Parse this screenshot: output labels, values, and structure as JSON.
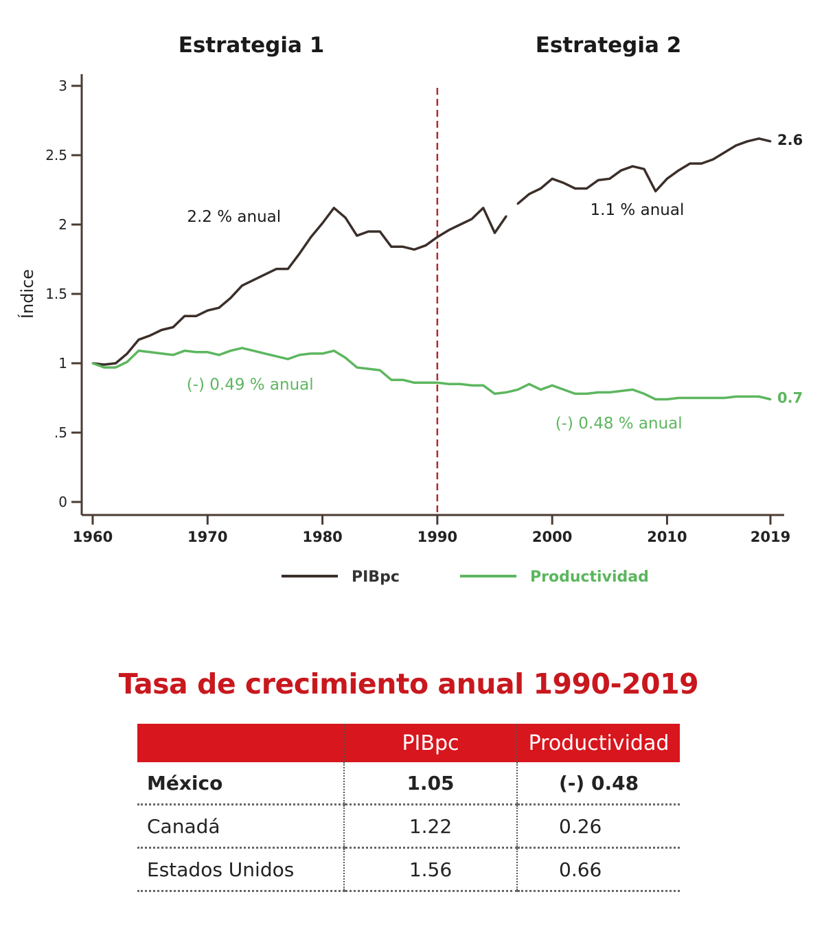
{
  "chart_data": {
    "type": "line",
    "period_labels": [
      "Estrategia 1",
      "Estrategia 2"
    ],
    "ylabel": "Índice",
    "xlabel": "",
    "ylim": [
      0,
      3
    ],
    "xlim": [
      1960,
      2019
    ],
    "y_ticks": [
      {
        "value": 0,
        "label": "0"
      },
      {
        "value": 0.5,
        "label": ".5"
      },
      {
        "value": 1,
        "label": "1"
      },
      {
        "value": 1.5,
        "label": "1.5"
      },
      {
        "value": 2,
        "label": "2"
      },
      {
        "value": 2.5,
        "label": "2.5"
      },
      {
        "value": 3,
        "label": "3"
      }
    ],
    "x_ticks": [
      {
        "value": 1960,
        "label": "1960"
      },
      {
        "value": 1970,
        "label": "1970"
      },
      {
        "value": 1980,
        "label": "1980"
      },
      {
        "value": 1990,
        "label": "1990"
      },
      {
        "value": 2000,
        "label": "2000"
      },
      {
        "value": 2010,
        "label": "2010"
      },
      {
        "value": 2019,
        "label": "2019"
      }
    ],
    "divider_year": 1990,
    "grid": false,
    "legend_position": "bottom",
    "series": [
      {
        "name": "PIBpc",
        "color": "#3b2f2a",
        "end_label": "2.6",
        "gap": [
          1996,
          1997
        ],
        "x": [
          1960,
          1961,
          1962,
          1963,
          1964,
          1965,
          1966,
          1967,
          1968,
          1969,
          1970,
          1971,
          1972,
          1973,
          1974,
          1975,
          1976,
          1977,
          1978,
          1979,
          1980,
          1981,
          1982,
          1983,
          1984,
          1985,
          1986,
          1987,
          1988,
          1989,
          1990,
          1991,
          1992,
          1993,
          1994,
          1995,
          1996,
          1997,
          1998,
          1999,
          2000,
          2001,
          2002,
          2003,
          2004,
          2005,
          2006,
          2007,
          2008,
          2009,
          2010,
          2011,
          2012,
          2013,
          2014,
          2015,
          2016,
          2017,
          2018,
          2019
        ],
        "values": [
          1.0,
          0.99,
          1.0,
          1.07,
          1.17,
          1.2,
          1.24,
          1.26,
          1.34,
          1.34,
          1.38,
          1.4,
          1.47,
          1.56,
          1.6,
          1.64,
          1.68,
          1.68,
          1.79,
          1.91,
          2.01,
          2.12,
          2.05,
          1.92,
          1.95,
          1.95,
          1.84,
          1.84,
          1.82,
          1.85,
          1.91,
          1.96,
          2.0,
          2.04,
          2.12,
          1.94,
          2.06,
          2.15,
          2.22,
          2.26,
          2.33,
          2.3,
          2.26,
          2.26,
          2.32,
          2.33,
          2.39,
          2.42,
          2.4,
          2.24,
          2.33,
          2.39,
          2.44,
          2.44,
          2.47,
          2.52,
          2.57,
          2.6,
          2.62,
          2.6
        ]
      },
      {
        "name": "Productividad",
        "color": "#5db65f",
        "end_label": "0.7",
        "x": [
          1960,
          1961,
          1962,
          1963,
          1964,
          1965,
          1966,
          1967,
          1968,
          1969,
          1970,
          1971,
          1972,
          1973,
          1974,
          1975,
          1976,
          1977,
          1978,
          1979,
          1980,
          1981,
          1982,
          1983,
          1984,
          1985,
          1986,
          1987,
          1988,
          1989,
          1990,
          1991,
          1992,
          1993,
          1994,
          1995,
          1996,
          1997,
          1998,
          1999,
          2000,
          2001,
          2002,
          2003,
          2004,
          2005,
          2006,
          2007,
          2008,
          2009,
          2010,
          2011,
          2012,
          2013,
          2014,
          2015,
          2016,
          2017,
          2018,
          2019
        ],
        "values": [
          1.0,
          0.97,
          0.97,
          1.01,
          1.09,
          1.08,
          1.07,
          1.06,
          1.09,
          1.08,
          1.08,
          1.06,
          1.09,
          1.11,
          1.09,
          1.07,
          1.05,
          1.03,
          1.06,
          1.07,
          1.07,
          1.09,
          1.04,
          0.97,
          0.96,
          0.95,
          0.88,
          0.88,
          0.86,
          0.86,
          0.86,
          0.85,
          0.85,
          0.84,
          0.84,
          0.78,
          0.79,
          0.81,
          0.85,
          0.81,
          0.84,
          0.81,
          0.78,
          0.78,
          0.79,
          0.79,
          0.8,
          0.81,
          0.78,
          0.74,
          0.74,
          0.75,
          0.75,
          0.75,
          0.75,
          0.75,
          0.76,
          0.76,
          0.76,
          0.74
        ]
      }
    ],
    "annotations": [
      {
        "text": "2.2 % anual",
        "x": 1972.3,
        "y": 2.02,
        "series": "PIBpc"
      },
      {
        "text": "1.1 % anual",
        "x": 2007.4,
        "y": 2.07,
        "series": "PIBpc"
      },
      {
        "text": "(-) 0.49 % anual",
        "x": 1973.7,
        "y": 0.81,
        "series": "Productividad"
      },
      {
        "text": "(-) 0.48 % anual",
        "x": 2005.8,
        "y": 0.53,
        "series": "Productividad"
      }
    ]
  },
  "table": {
    "title": "Tasa de crecimiento anual 1990-2019",
    "headers": [
      "",
      "PIBpc",
      "Productividad"
    ],
    "rows": [
      {
        "country": "México",
        "pibpc": "1.05",
        "productividad": "(-) 0.48"
      },
      {
        "country": "Canadá",
        "pibpc": "1.22",
        "productividad": "0.26"
      },
      {
        "country": "Estados Unidos",
        "pibpc": "1.56",
        "productividad": "0.66"
      }
    ]
  },
  "colors": {
    "accent": "#d8161e",
    "axis": "#4a3b33",
    "divider": "#b2262e"
  }
}
